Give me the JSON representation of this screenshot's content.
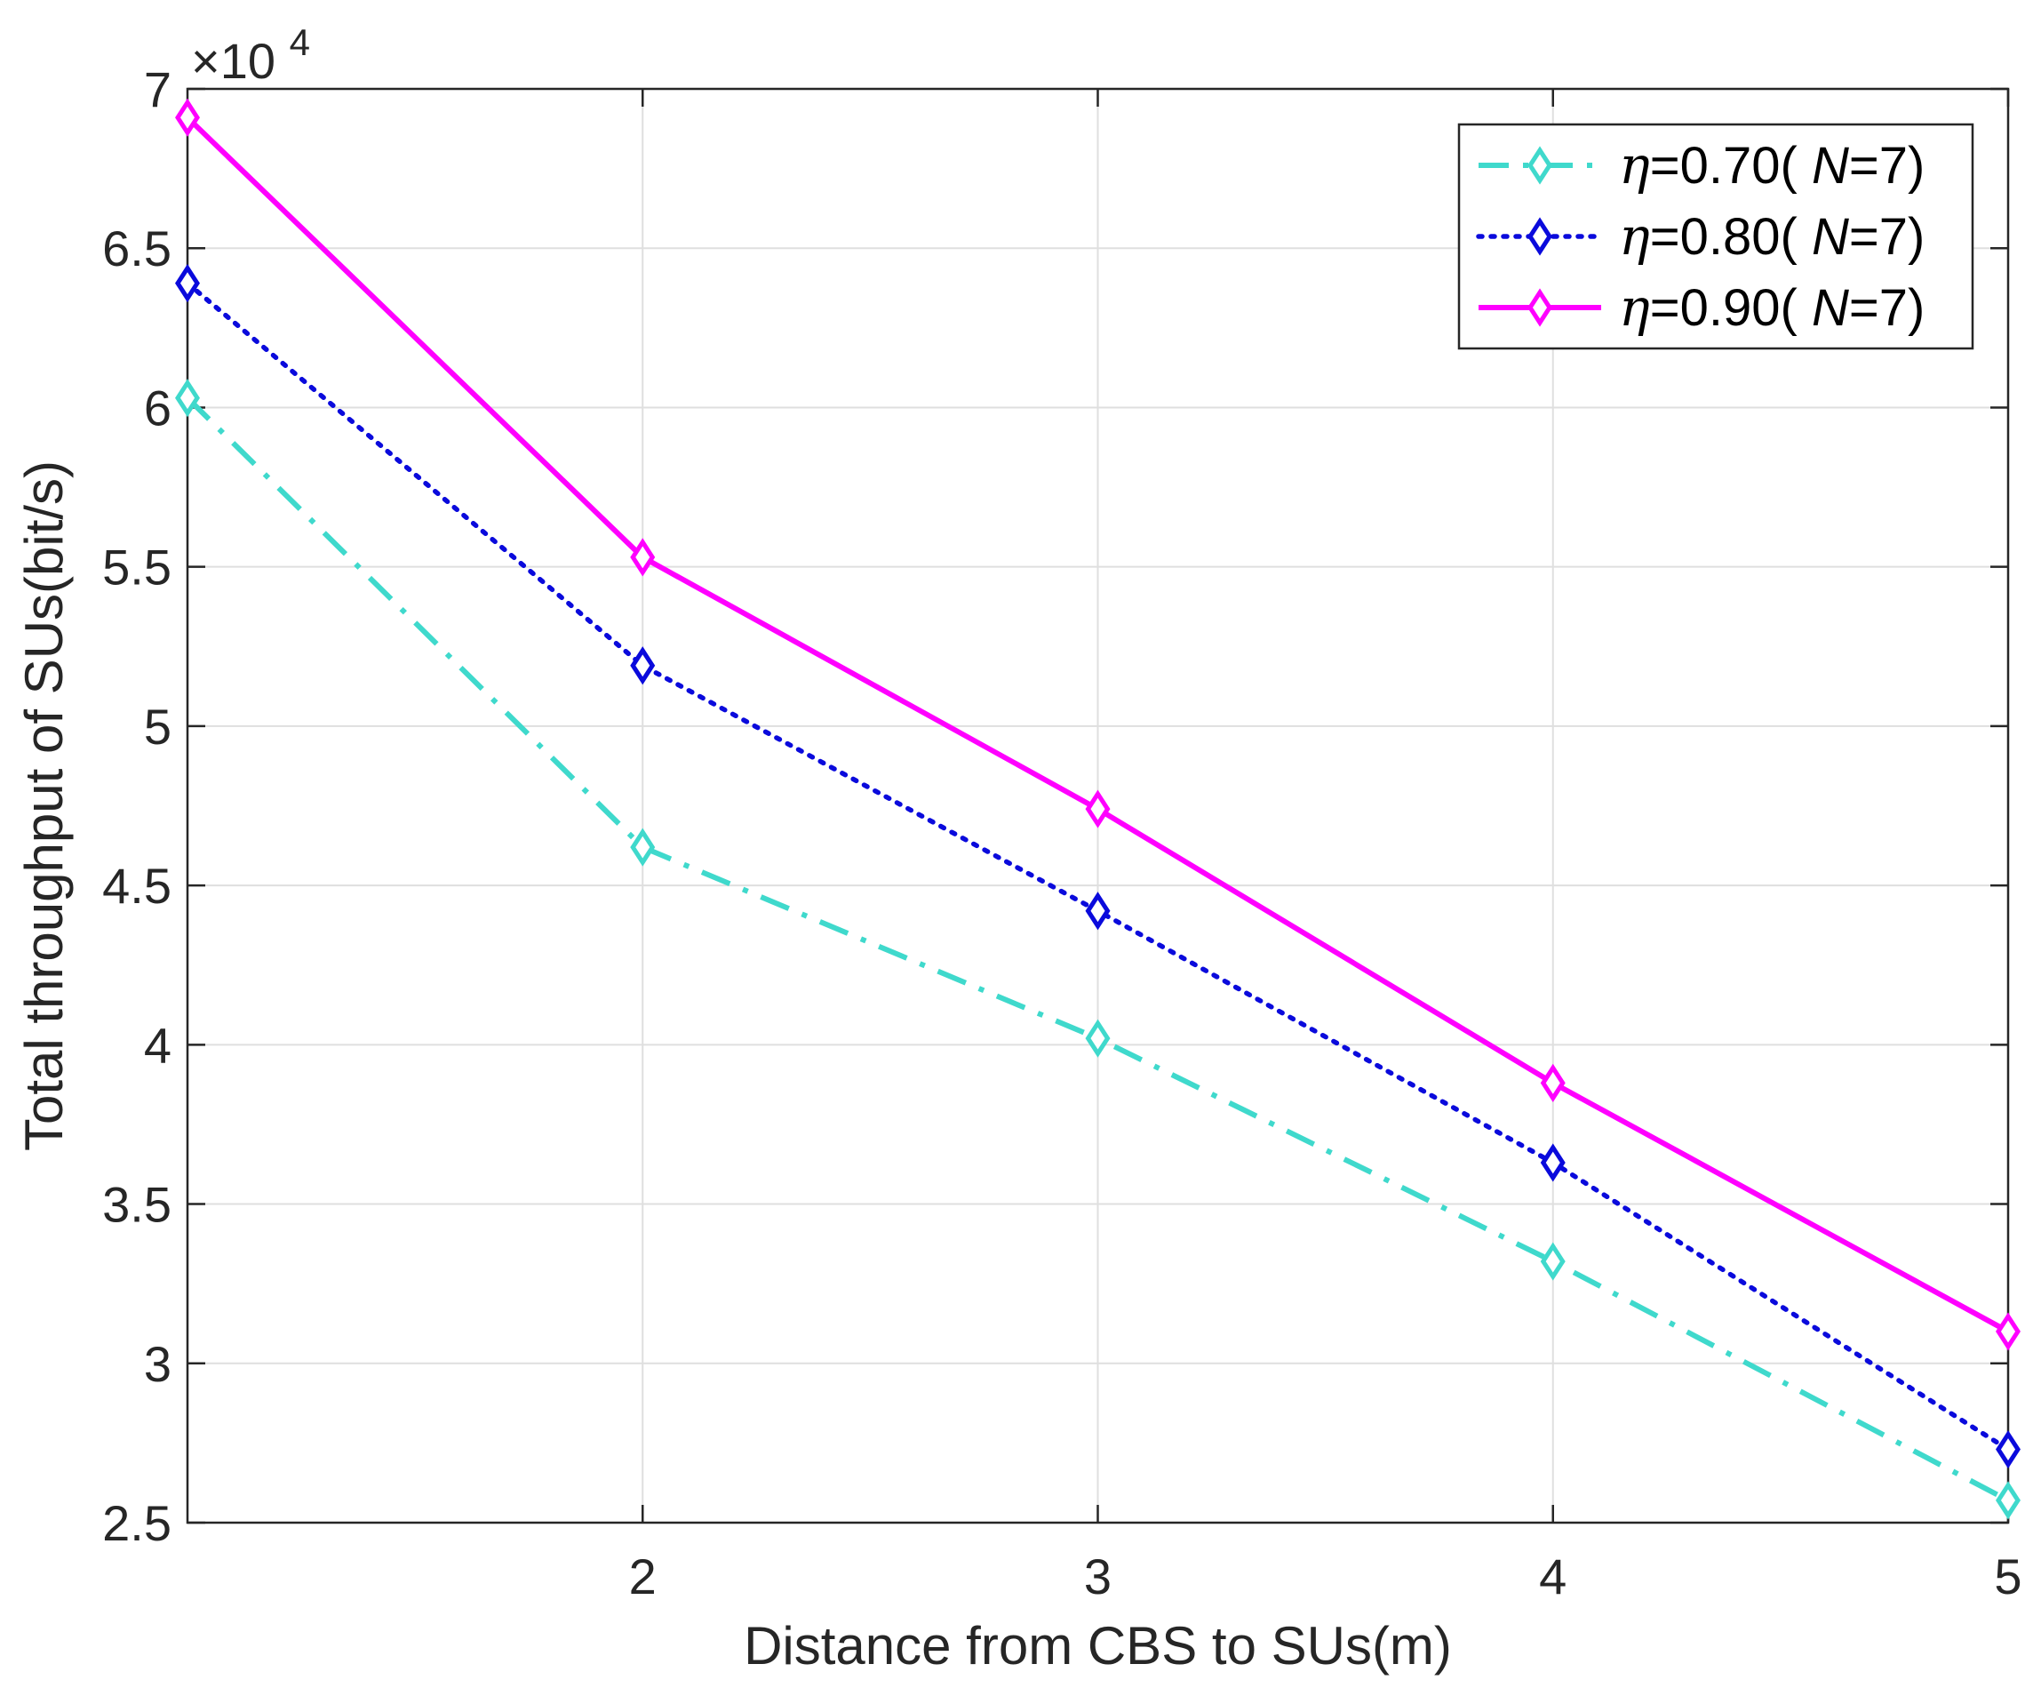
{
  "chart_data": {
    "type": "line",
    "title": "",
    "xlabel": "Distance from CBS to SUs(m)",
    "ylabel": "Total throughput of SUs(bit/s)",
    "x": [
      1,
      2,
      3,
      4,
      5
    ],
    "xlim": [
      1,
      5
    ],
    "ylim": [
      25000,
      70000
    ],
    "x_ticks": [
      2,
      3,
      4,
      5
    ],
    "y_ticks": [
      25000,
      30000,
      35000,
      40000,
      45000,
      50000,
      55000,
      60000,
      65000,
      70000
    ],
    "y_tick_labels": [
      "2.5",
      "3",
      "3.5",
      "4",
      "4.5",
      "5",
      "5.5",
      "6",
      "6.5",
      "7"
    ],
    "y_exponent_label": "×10",
    "y_exponent_power": "4",
    "grid": true,
    "legend_position": "top-right",
    "series": [
      {
        "name": "η=0.70( N=7)",
        "eta": "η",
        "label_mid": "=0.70( ",
        "label_n": "N",
        "label_end": "=7)",
        "color": "#3FD9CC",
        "line_style": "dash-dot",
        "marker": "diamond",
        "values": [
          60300,
          46200,
          40200,
          33200,
          25700
        ]
      },
      {
        "name": "η=0.80( N=7)",
        "eta": "η",
        "label_mid": "=0.80( ",
        "label_n": "N",
        "label_end": "=7)",
        "color": "#0A0ADC",
        "line_style": "dotted",
        "marker": "diamond",
        "values": [
          63900,
          51900,
          44200,
          36300,
          27300
        ]
      },
      {
        "name": "η=0.90( N=7)",
        "eta": "η",
        "label_mid": "=0.90( ",
        "label_n": "N",
        "label_end": "=7)",
        "color": "#FF00FF",
        "line_style": "solid",
        "marker": "diamond",
        "values": [
          69100,
          55300,
          47400,
          38800,
          31000
        ]
      }
    ]
  }
}
